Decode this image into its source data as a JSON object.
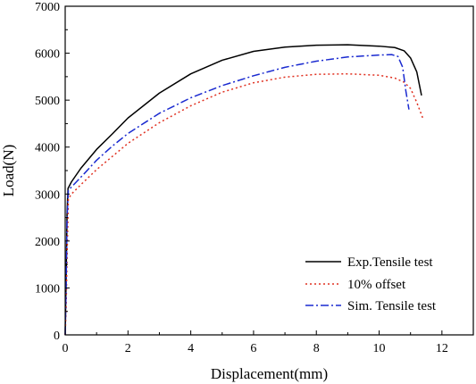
{
  "chart_data": {
    "type": "line",
    "title": "",
    "xlabel": "Displacement(mm)",
    "ylabel": "Load(N)",
    "xlim": [
      0,
      13
    ],
    "ylim": [
      0,
      7000
    ],
    "x_ticks": [
      0,
      2,
      4,
      6,
      8,
      10,
      12
    ],
    "y_ticks": [
      0,
      1000,
      2000,
      3000,
      4000,
      5000,
      6000,
      7000
    ],
    "grid": false,
    "legend_position": "bottom-right",
    "series": [
      {
        "name": "Exp.Tensile test",
        "color": "#000000",
        "dash": "solid",
        "points": [
          [
            0,
            0
          ],
          [
            0.03,
            1200
          ],
          [
            0.06,
            2600
          ],
          [
            0.09,
            3120
          ],
          [
            0.2,
            3260
          ],
          [
            0.5,
            3550
          ],
          [
            1,
            3950
          ],
          [
            1.5,
            4280
          ],
          [
            2,
            4620
          ],
          [
            3,
            5150
          ],
          [
            4,
            5560
          ],
          [
            5,
            5850
          ],
          [
            6,
            6040
          ],
          [
            7,
            6130
          ],
          [
            8,
            6170
          ],
          [
            9,
            6180
          ],
          [
            10,
            6150
          ],
          [
            10.5,
            6120
          ],
          [
            10.8,
            6050
          ],
          [
            11,
            5900
          ],
          [
            11.2,
            5600
          ],
          [
            11.35,
            5100
          ]
        ]
      },
      {
        "name": "10% offset",
        "color": "#e03020",
        "dash": "dotted",
        "points": [
          [
            0,
            0
          ],
          [
            0.03,
            600
          ],
          [
            0.07,
            2000
          ],
          [
            0.1,
            2900
          ],
          [
            0.2,
            3000
          ],
          [
            0.5,
            3200
          ],
          [
            1,
            3520
          ],
          [
            1.5,
            3800
          ],
          [
            2,
            4080
          ],
          [
            3,
            4520
          ],
          [
            4,
            4880
          ],
          [
            5,
            5170
          ],
          [
            6,
            5370
          ],
          [
            7,
            5490
          ],
          [
            8,
            5550
          ],
          [
            9,
            5560
          ],
          [
            10,
            5530
          ],
          [
            10.5,
            5470
          ],
          [
            10.8,
            5380
          ],
          [
            11,
            5250
          ],
          [
            11.2,
            4950
          ],
          [
            11.4,
            4600
          ]
        ]
      },
      {
        "name": "Sim. Tensile test",
        "color": "#1a2ad0",
        "dash": "dashdot",
        "points": [
          [
            0,
            0
          ],
          [
            0.03,
            1000
          ],
          [
            0.06,
            2500
          ],
          [
            0.1,
            3080
          ],
          [
            0.3,
            3220
          ],
          [
            0.6,
            3430
          ],
          [
            1,
            3720
          ],
          [
            1.5,
            4020
          ],
          [
            2,
            4290
          ],
          [
            3,
            4720
          ],
          [
            4,
            5050
          ],
          [
            5,
            5310
          ],
          [
            6,
            5520
          ],
          [
            7,
            5700
          ],
          [
            8,
            5830
          ],
          [
            9,
            5920
          ],
          [
            10,
            5960
          ],
          [
            10.4,
            5970
          ],
          [
            10.6,
            5930
          ],
          [
            10.75,
            5700
          ],
          [
            10.85,
            5200
          ],
          [
            10.95,
            4800
          ]
        ]
      }
    ]
  }
}
